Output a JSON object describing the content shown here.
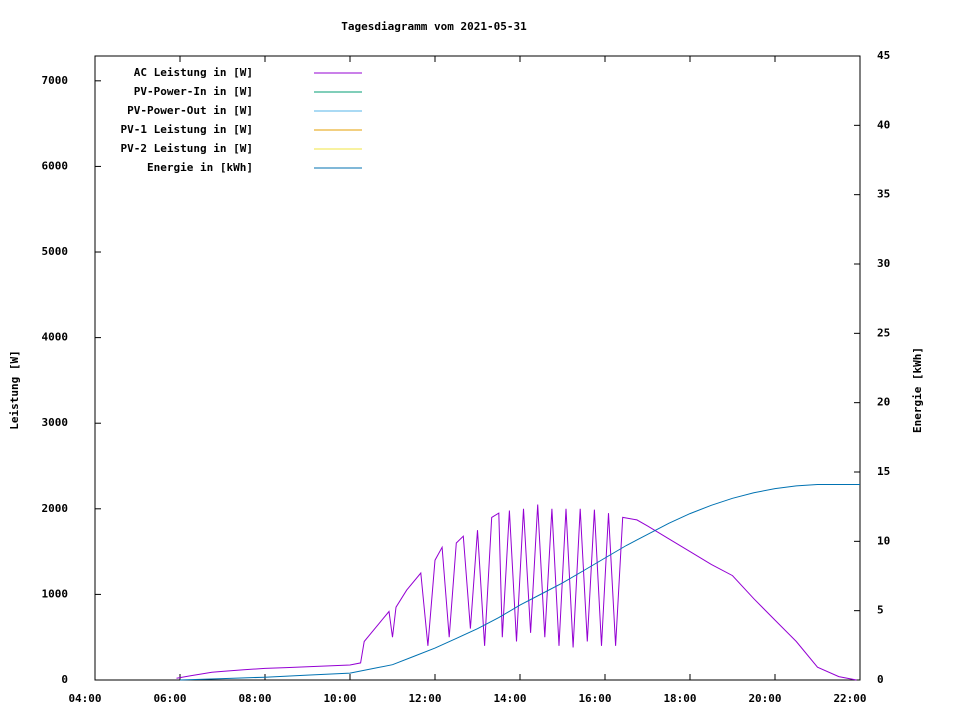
{
  "chart_data": {
    "type": "line",
    "title": "Tagesdiagramm vom 2021-05-31",
    "ylabel": "Leistung [W]",
    "y2label": "Energie [kWh]",
    "xlim": [
      "04:00",
      "22:00"
    ],
    "xticks": [
      "04:00",
      "06:00",
      "08:00",
      "10:00",
      "12:00",
      "14:00",
      "16:00",
      "18:00",
      "20:00",
      "22:00"
    ],
    "ylim": [
      0,
      7290
    ],
    "yticks": [
      0,
      1000,
      2000,
      3000,
      4000,
      5000,
      6000,
      7000
    ],
    "y2lim": [
      0,
      45
    ],
    "y2ticks": [
      0,
      5,
      10,
      15,
      20,
      25,
      30,
      35,
      40,
      45
    ],
    "legend": "top-left",
    "series": [
      {
        "name": "AC Leistung in [W]",
        "color": "#9400d3",
        "x": [
          "05:55",
          "06:15",
          "06:30",
          "06:45",
          "07:00",
          "07:30",
          "08:00",
          "08:30",
          "09:00",
          "09:30",
          "10:00",
          "10:15",
          "10:20",
          "10:40",
          "10:55",
          "11:00",
          "11:05",
          "11:20",
          "11:40",
          "11:50",
          "12:00",
          "12:10",
          "12:20",
          "12:30",
          "12:40",
          "12:50",
          "13:00",
          "13:10",
          "13:20",
          "13:30",
          "13:35",
          "13:45",
          "13:55",
          "14:05",
          "14:15",
          "14:25",
          "14:35",
          "14:45",
          "14:55",
          "15:05",
          "15:15",
          "15:25",
          "15:35",
          "15:45",
          "15:55",
          "16:05",
          "16:15",
          "16:25",
          "16:45",
          "17:00",
          "17:30",
          "18:00",
          "18:30",
          "19:00",
          "19:30",
          "20:00",
          "20:30",
          "21:00",
          "21:30",
          "21:55"
        ],
        "values": [
          20,
          50,
          70,
          90,
          100,
          120,
          135,
          145,
          155,
          165,
          175,
          200,
          450,
          650,
          800,
          500,
          850,
          1050,
          1250,
          400,
          1400,
          1550,
          500,
          1600,
          1680,
          600,
          1750,
          400,
          1900,
          1950,
          500,
          1980,
          450,
          2000,
          550,
          2050,
          500,
          2000,
          400,
          2000,
          380,
          2000,
          450,
          1990,
          400,
          1950,
          400,
          1900,
          1870,
          1800,
          1650,
          1500,
          1350,
          1220,
          950,
          700,
          450,
          150,
          40,
          0
        ]
      },
      {
        "name": "PV-Power-In in [W]",
        "color": "#009e73"
      },
      {
        "name": "PV-Power-Out in [W]",
        "color": "#56b4e9"
      },
      {
        "name": "PV-1 Leistung in [W]",
        "color": "#e69f00"
      },
      {
        "name": "PV-2 Leistung in [W]",
        "color": "#f0e442"
      },
      {
        "name": "Energie in [kWh]",
        "color": "#0072b2",
        "axis": "y2",
        "x": [
          "06:00",
          "07:00",
          "08:00",
          "09:00",
          "10:00",
          "10:30",
          "11:00",
          "11:30",
          "12:00",
          "12:30",
          "13:00",
          "13:30",
          "14:00",
          "14:30",
          "15:00",
          "15:30",
          "16:00",
          "16:30",
          "17:00",
          "17:30",
          "18:00",
          "18:30",
          "19:00",
          "19:30",
          "20:00",
          "20:30",
          "21:00",
          "21:30",
          "22:00"
        ],
        "values": [
          0,
          0.1,
          0.2,
          0.35,
          0.5,
          0.8,
          1.1,
          1.7,
          2.3,
          3.0,
          3.7,
          4.5,
          5.4,
          6.2,
          7.0,
          7.9,
          8.8,
          9.7,
          10.5,
          11.3,
          12.0,
          12.6,
          13.1,
          13.5,
          13.8,
          14.0,
          14.1,
          14.1,
          14.1
        ]
      }
    ]
  }
}
